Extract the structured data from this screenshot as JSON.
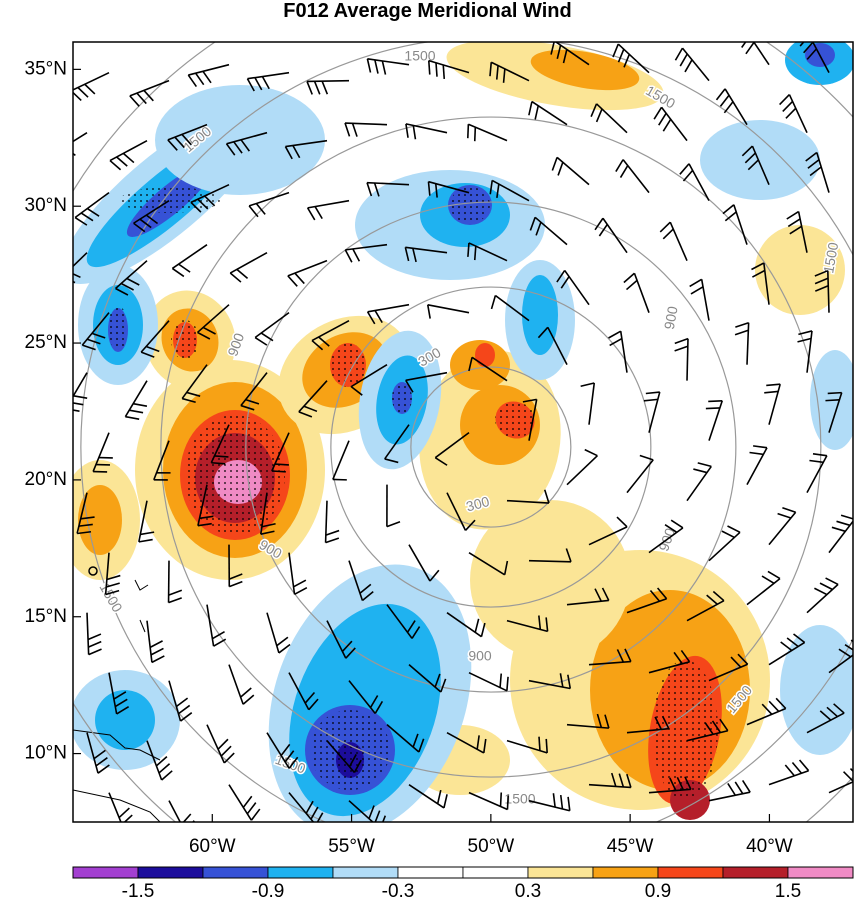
{
  "title": "F012 Average Meridional Wind",
  "map": {
    "lat_range": [
      7.5,
      36
    ],
    "lon_range": [
      -65,
      -37
    ],
    "lat_ticks": [
      {
        "value": 35,
        "label": "35°N"
      },
      {
        "value": 30,
        "label": "30°N"
      },
      {
        "value": 25,
        "label": "25°N"
      },
      {
        "value": 20,
        "label": "20°N"
      },
      {
        "value": 15,
        "label": "15°N"
      },
      {
        "value": 10,
        "label": "10°N"
      }
    ],
    "lon_ticks": [
      {
        "value": -60,
        "label": "60°W"
      },
      {
        "value": -55,
        "label": "55°W"
      },
      {
        "value": -50,
        "label": "50°W"
      },
      {
        "value": -45,
        "label": "45°W"
      },
      {
        "value": -40,
        "label": "40°W"
      }
    ],
    "storm_center": {
      "lat": 21.2,
      "lon": -50.0
    },
    "range_rings": [
      {
        "label": "300"
      },
      {
        "label": "900"
      },
      {
        "label": "1500"
      }
    ],
    "colors": {
      "land_outline": "#000000",
      "ring": "#999999",
      "barb": "#000000"
    }
  },
  "colorbar": {
    "colors": [
      "#a33fd1",
      "#1c0d9c",
      "#3652d6",
      "#1fb2f0",
      "#b1dcf7",
      "#ffffff",
      "#ffffff",
      "#fbe596",
      "#f7a215",
      "#f5461a",
      "#b51f2a",
      "#f08bc5"
    ],
    "labels": [
      "-1.5",
      "-0.9",
      "-0.3",
      "0.3",
      "0.9",
      "1.5"
    ]
  }
}
